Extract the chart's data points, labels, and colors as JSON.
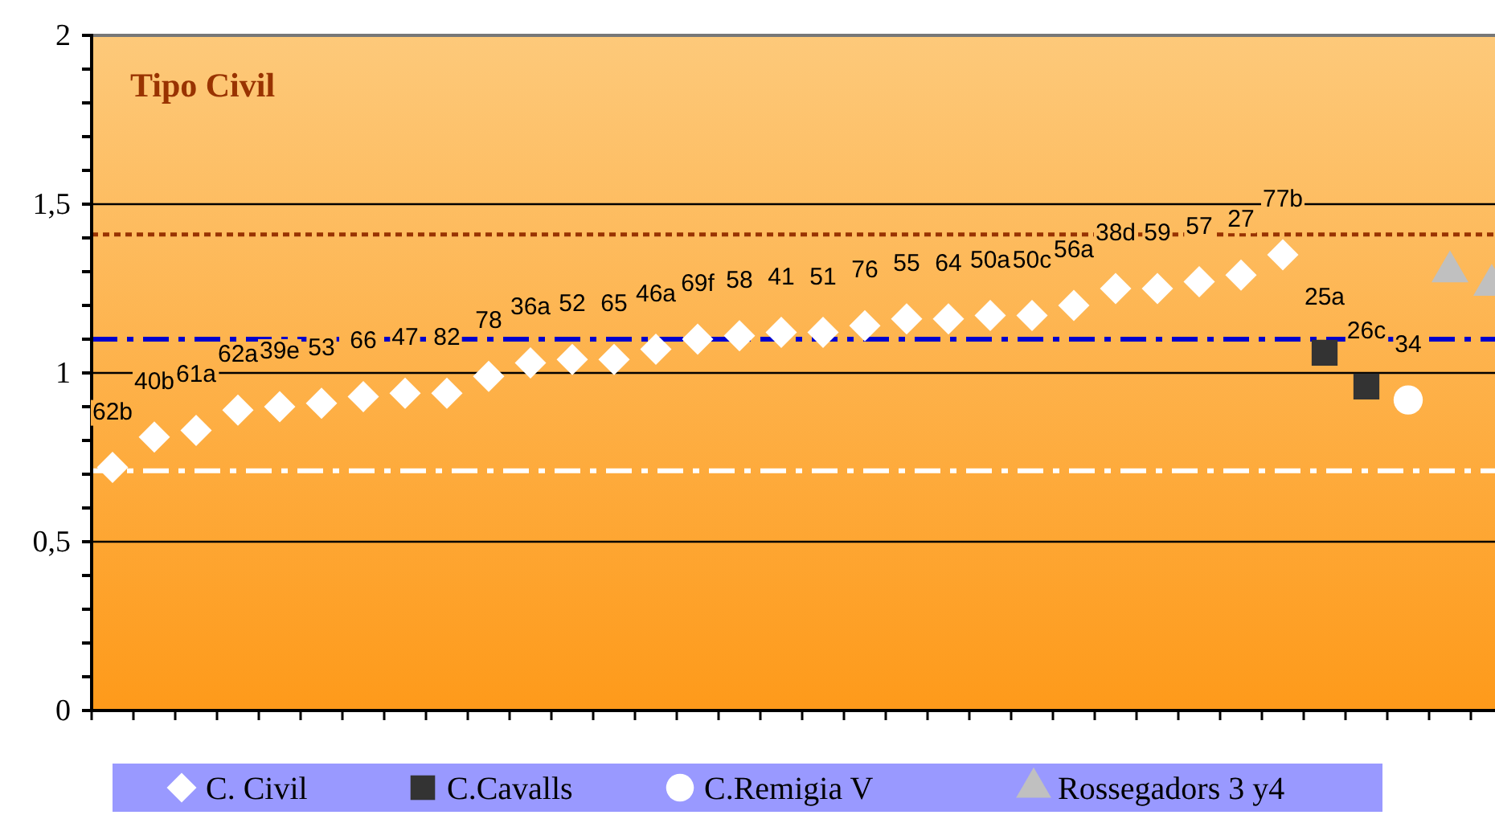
{
  "chart_data": {
    "type": "scatter",
    "title": "Tipo Civil",
    "categories": [
      null,
      null,
      null,
      null,
      null,
      null,
      null,
      null,
      null,
      null,
      null,
      null,
      null,
      null,
      null,
      null,
      null,
      null,
      null,
      null,
      null,
      null,
      null,
      null,
      null,
      null,
      null,
      null,
      null,
      null,
      null,
      null,
      null,
      null
    ],
    "ylim": [
      0,
      2
    ],
    "yticks": [
      {
        "value": 0,
        "label": "0"
      },
      {
        "value": 0.1,
        "label": null
      },
      {
        "value": 0.2,
        "label": null
      },
      {
        "value": 0.3,
        "label": null
      },
      {
        "value": 0.4,
        "label": null
      },
      {
        "value": 0.5,
        "label": "0,5"
      },
      {
        "value": 0.6,
        "label": null
      },
      {
        "value": 0.7,
        "label": null
      },
      {
        "value": 0.8,
        "label": null
      },
      {
        "value": 0.9,
        "label": null
      },
      {
        "value": 1,
        "label": "1"
      },
      {
        "value": 1.1,
        "label": null
      },
      {
        "value": 1.2,
        "label": null
      },
      {
        "value": 1.3,
        "label": null
      },
      {
        "value": 1.4,
        "label": null
      },
      {
        "value": 1.5,
        "label": "1,5"
      },
      {
        "value": 1.6,
        "label": null
      },
      {
        "value": 1.7,
        "label": null
      },
      {
        "value": 1.8,
        "label": null
      },
      {
        "value": 1.9,
        "label": null
      },
      {
        "value": 2,
        "label": "2"
      }
    ],
    "grid": "y",
    "legend": "bottom",
    "series": [
      {
        "name": "C. Civil",
        "color": "#ffffff",
        "marker": "diamond",
        "values": [
          0.72,
          0.81,
          0.83,
          0.89,
          0.9,
          0.91,
          0.93,
          0.94,
          0.94,
          0.99,
          1.03,
          1.04,
          1.04,
          1.07,
          1.1,
          1.11,
          1.12,
          1.12,
          1.14,
          1.16,
          1.16,
          1.17,
          1.17,
          1.2,
          1.25,
          1.25,
          1.27,
          1.29,
          1.35,
          null,
          null,
          null,
          null,
          null
        ]
      },
      {
        "name": "C.Cavalls",
        "color": "#333333",
        "marker": "square",
        "values": [
          null,
          null,
          null,
          null,
          null,
          null,
          null,
          null,
          null,
          null,
          null,
          null,
          null,
          null,
          null,
          null,
          null,
          null,
          null,
          null,
          null,
          null,
          null,
          null,
          null,
          null,
          null,
          null,
          null,
          1.06,
          0.96,
          null,
          null,
          null
        ]
      },
      {
        "name": "C.Remigia V",
        "color": "#ffffff",
        "marker": "circle",
        "values": [
          null,
          null,
          null,
          null,
          null,
          null,
          null,
          null,
          null,
          null,
          null,
          null,
          null,
          null,
          null,
          null,
          null,
          null,
          null,
          null,
          null,
          null,
          null,
          null,
          null,
          null,
          null,
          null,
          null,
          null,
          null,
          0.92,
          null,
          null
        ]
      },
      {
        "name": "Rossegadors 3 y4",
        "color": "#c0c0c0",
        "marker": "triangle",
        "values": [
          null,
          null,
          null,
          null,
          null,
          null,
          null,
          null,
          null,
          null,
          null,
          null,
          null,
          null,
          null,
          null,
          null,
          null,
          null,
          null,
          null,
          null,
          null,
          null,
          null,
          null,
          null,
          null,
          null,
          null,
          null,
          null,
          1.3,
          1.26
        ]
      }
    ],
    "annotations": [
      {
        "text": "62b",
        "y": 0.72
      },
      {
        "text": "40b",
        "y": 0.81
      },
      {
        "text": "61a",
        "y": 0.83
      },
      {
        "text": "62a",
        "y": 0.89
      },
      {
        "text": "39e",
        "y": 0.9
      },
      {
        "text": "53",
        "y": 0.91
      },
      {
        "text": "66",
        "y": 0.93
      },
      {
        "text": "47",
        "y": 0.94
      },
      {
        "text": "82",
        "y": 0.94
      },
      {
        "text": "78",
        "y": 0.99
      },
      {
        "text": "36a",
        "y": 1.03
      },
      {
        "text": "52",
        "y": 1.04
      },
      {
        "text": "65",
        "y": 1.04
      },
      {
        "text": "46a",
        "y": 1.07
      },
      {
        "text": "69f",
        "y": 1.1
      },
      {
        "text": "58",
        "y": 1.11
      },
      {
        "text": "41",
        "y": 1.12
      },
      {
        "text": "51",
        "y": 1.12
      },
      {
        "text": "76",
        "y": 1.14
      },
      {
        "text": "55",
        "y": 1.16
      },
      {
        "text": "64",
        "y": 1.16
      },
      {
        "text": "50a",
        "y": 1.17
      },
      {
        "text": "50c",
        "y": 1.17
      },
      {
        "text": "56a",
        "y": 1.2
      },
      {
        "text": "38d",
        "y": 1.25
      },
      {
        "text": "59",
        "y": 1.25
      },
      {
        "text": "57",
        "y": 1.27
      },
      {
        "text": "27",
        "y": 1.29
      },
      {
        "text": "77b",
        "y": 1.35
      },
      {
        "text": "25a",
        "y": 1.06
      },
      {
        "text": "26c",
        "y": 0.96
      },
      {
        "text": "34",
        "y": 0.92
      }
    ],
    "ref_lines": [
      {
        "axis": "y",
        "value": 1.41,
        "color": "#993300",
        "line_style": "dotted"
      },
      {
        "axis": "y",
        "value": 1.1,
        "color": "#0000cc",
        "line_style": "dashdot"
      },
      {
        "axis": "y",
        "value": 0.71,
        "color": "#ffffff",
        "line_style": "dashdot"
      }
    ]
  }
}
